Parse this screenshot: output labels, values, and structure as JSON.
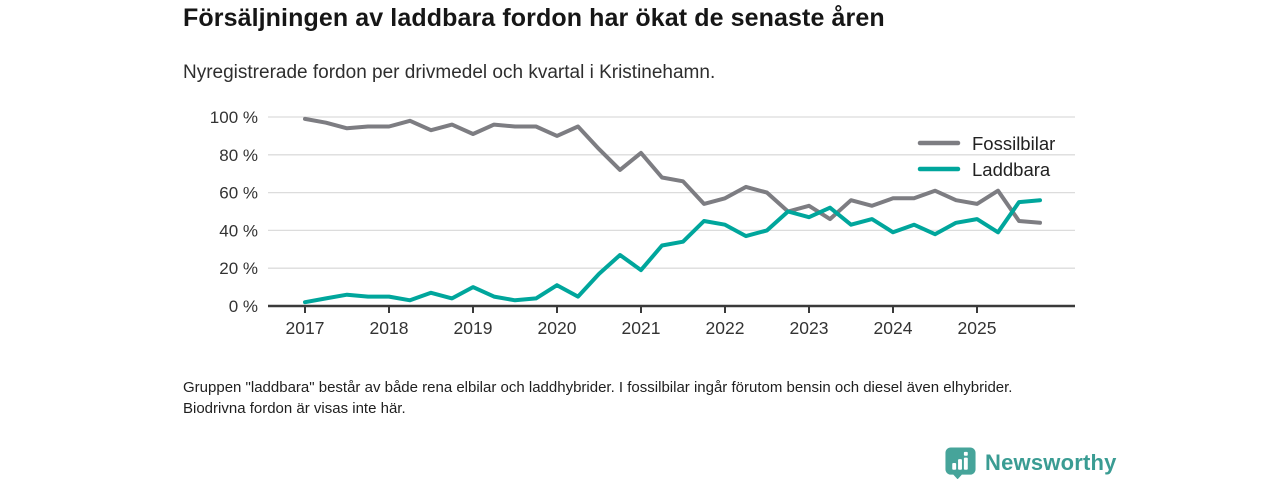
{
  "title": "Försäljningen av laddbara fordon har ökat de senaste åren",
  "subtitle": "Nyregistrerade fordon per drivmedel och kvartal i Kristinehamn.",
  "footnote": "Gruppen \"laddbara\" består av både rena elbilar och laddhybrider. I fossilbilar ingår förutom bensin och diesel även elhybrider. Biodrivna fordon är visas inte här.",
  "logo": {
    "text": "Newsworthy",
    "color": "#3a9c93",
    "badge_color": "#46a49a",
    "icon": "bar-chart-badge-icon"
  },
  "colors": {
    "fossil_line": "#7d7d82",
    "laddbara_line": "#00a69c",
    "grid": "#dcdcdc",
    "axis": "#3a3a3a",
    "tick_text": "#333333",
    "legend_text": "#222222"
  },
  "chart_data": {
    "type": "line",
    "title": "Försäljningen av laddbara fordon har ökat de senaste åren",
    "subtitle": "Nyregistrerade fordon per drivmedel och kvartal i Kristinehamn.",
    "x_unit": "quarter",
    "x_start": "2017 Q1",
    "x_end": "2025 Q4",
    "x_tick_labels": [
      "2017",
      "2018",
      "2019",
      "2020",
      "2021",
      "2022",
      "2023",
      "2024",
      "2025"
    ],
    "y_ticks": [
      0,
      20,
      40,
      60,
      80,
      100
    ],
    "y_tick_labels": [
      "0 %",
      "20 %",
      "40 %",
      "60 %",
      "80 %",
      "100 %"
    ],
    "ylim": [
      0,
      100
    ],
    "ylabel": "",
    "xlabel": "",
    "grid": true,
    "legend_position": "top-right-inside",
    "series": [
      {
        "name": "Fossilbilar",
        "color": "#7d7d82",
        "values": [
          99,
          97,
          94,
          95,
          95,
          98,
          93,
          96,
          91,
          96,
          95,
          95,
          90,
          95,
          83,
          72,
          81,
          68,
          66,
          54,
          57,
          63,
          60,
          50,
          53,
          46,
          56,
          53,
          57,
          57,
          61,
          56,
          54,
          61,
          45,
          44
        ]
      },
      {
        "name": "Laddbara",
        "color": "#00a69c",
        "values": [
          2,
          4,
          6,
          5,
          5,
          3,
          7,
          4,
          10,
          5,
          3,
          4,
          11,
          5,
          17,
          27,
          19,
          32,
          34,
          45,
          43,
          37,
          40,
          50,
          47,
          52,
          43,
          46,
          39,
          43,
          38,
          44,
          46,
          39,
          55,
          56
        ]
      }
    ]
  }
}
